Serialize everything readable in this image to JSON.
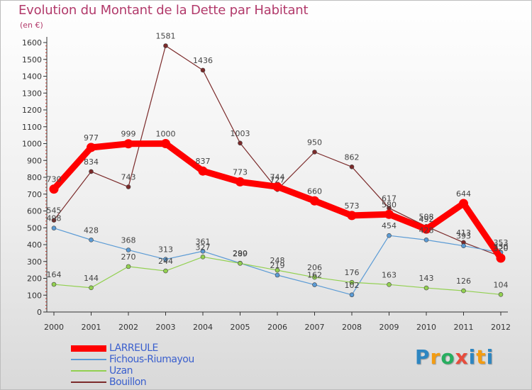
{
  "chart_data": {
    "type": "line",
    "title": "Evolution du Montant de la Dette par Habitant",
    "subtitle": "(en €)",
    "x": [
      "2000",
      "2001",
      "2002",
      "2003",
      "2004",
      "2005",
      "2006",
      "2007",
      "2008",
      "2009",
      "2010",
      "2011",
      "2012"
    ],
    "ylim": [
      0,
      1600
    ],
    "yticks": [
      0,
      100,
      200,
      300,
      400,
      500,
      600,
      700,
      800,
      900,
      1000,
      1100,
      1200,
      1300,
      1400,
      1500,
      1600
    ],
    "grid": false,
    "legend_position": "bottom-left",
    "series": [
      {
        "name": "LARREULE",
        "color": "#ff0000",
        "values": [
          730,
          977,
          999,
          1000,
          837,
          773,
          744,
          660,
          573,
          580,
          492,
          644,
          320
        ]
      },
      {
        "name": "Fichous-Riumayou",
        "color": "#5b9bd5",
        "values": [
          498,
          428,
          368,
          313,
          361,
          290,
          219,
          162,
          102,
          454,
          428,
          393,
          353
        ]
      },
      {
        "name": "Uzan",
        "color": "#92d050",
        "values": [
          164,
          144,
          270,
          244,
          327,
          289,
          248,
          206,
          176,
          163,
          143,
          126,
          104
        ]
      },
      {
        "name": "Bouillon",
        "color": "#7b2a2a",
        "values": [
          545,
          834,
          743,
          1581,
          1436,
          1003,
          727,
          950,
          862,
          617,
          508,
          413,
          330
        ]
      }
    ]
  },
  "brand": {
    "letters": [
      "P",
      "r",
      "o",
      "x",
      "i",
      "t",
      "i"
    ],
    "colors": [
      "#2e86c1",
      "#f39c12",
      "#27ae60",
      "#e74c3c",
      "#2e86c1",
      "#f39c12",
      "#2e86c1"
    ]
  }
}
